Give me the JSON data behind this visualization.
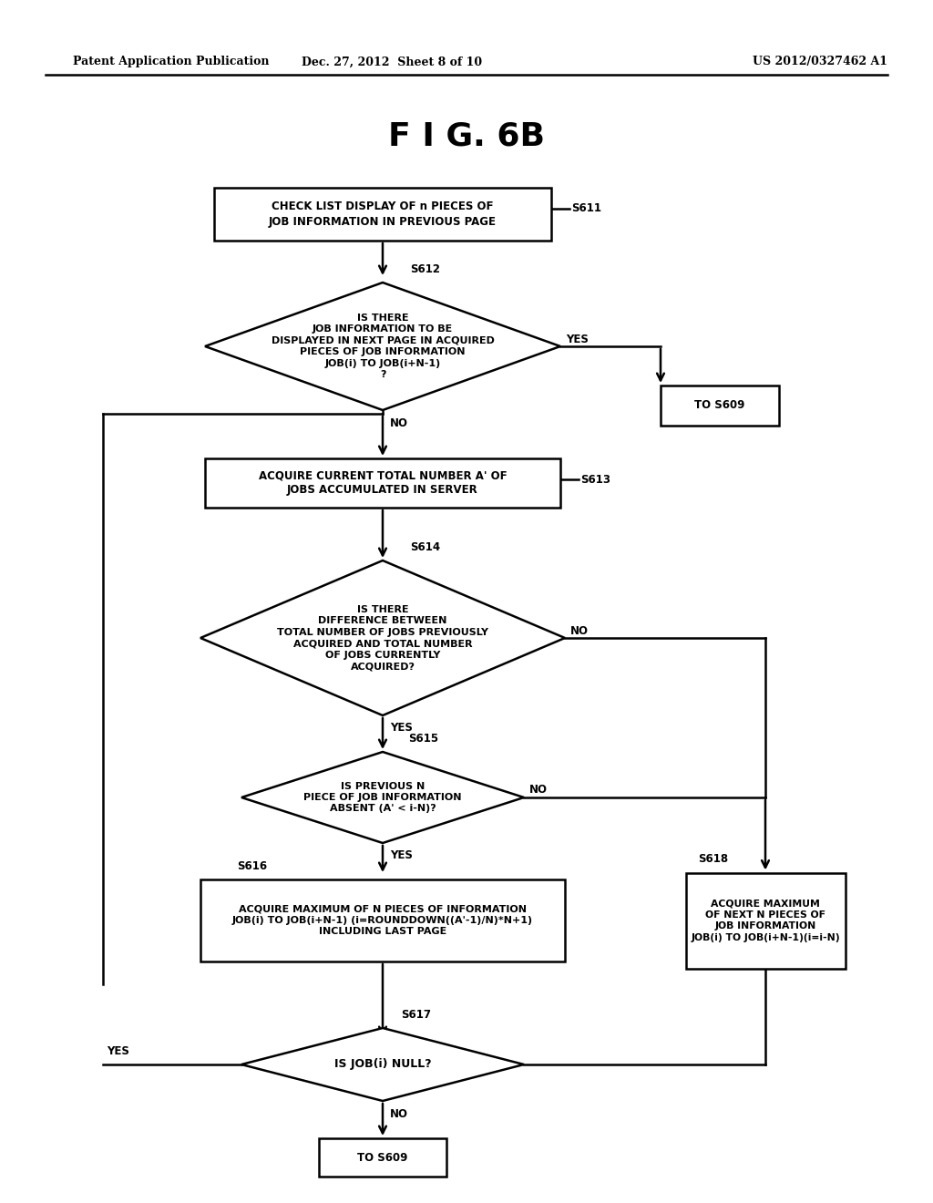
{
  "title": "F I G. 6B",
  "header_left": "Patent Application Publication",
  "header_mid": "Dec. 27, 2012  Sheet 8 of 10",
  "header_right": "US 2012/0327462 A1",
  "background": "#ffffff",
  "s611_label": "CHECK LIST DISPLAY OF n PIECES OF\nJOB INFORMATION IN PREVIOUS PAGE",
  "s612_label": "IS THERE\nJOB INFORMATION TO BE\nDISPLAYED IN NEXT PAGE IN ACQUIRED\nPIECES OF JOB INFORMATION\nJOB(i) TO JOB(i+N-1)\n?",
  "s609a_label": "TO S609",
  "s613_label": "ACQUIRE CURRENT TOTAL NUMBER A' OF\nJOBS ACCUMULATED IN SERVER",
  "s614_label": "IS THERE\nDIFFERENCE BETWEEN\nTOTAL NUMBER OF JOBS PREVIOUSLY\nACQUIRED AND TOTAL NUMBER\nOF JOBS CURRENTLY\nACQUIRED?",
  "s615_label": "IS PREVIOUS N\nPIECE OF JOB INFORMATION\nABSENT (A' < i-N)?",
  "s616_label": "ACQUIRE MAXIMUM OF N PIECES OF INFORMATION\nJOB(i) TO JOB(i+N-1) (i=ROUNDDOWN((A'-1)/N)*N+1)\nINCLUDING LAST PAGE",
  "s618_label": "ACQUIRE MAXIMUM\nOF NEXT N PIECES OF\nJOB INFORMATION\nJOB(i) TO JOB(i+N-1)(i=i-N)",
  "s617_label": "IS JOB(i) NULL?",
  "s609b_label": "TO S609"
}
